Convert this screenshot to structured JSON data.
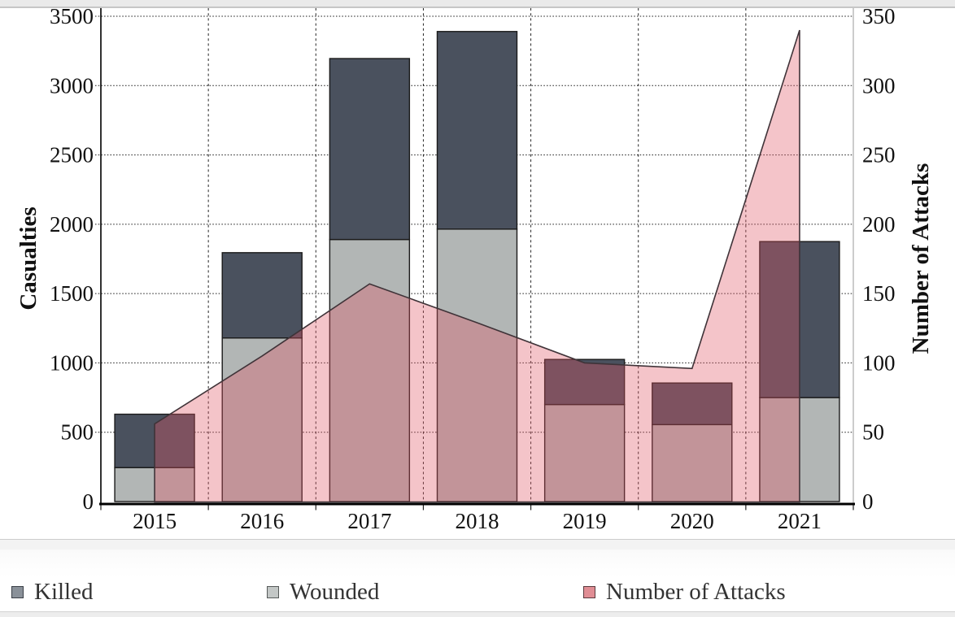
{
  "chart_data": {
    "type": "combo",
    "title": "",
    "categories": [
      "2015",
      "2016",
      "2017",
      "2018",
      "2019",
      "2020",
      "2021"
    ],
    "series": [
      {
        "name": "Killed",
        "chart": "bar",
        "stack": "casualties",
        "stack_position": "top",
        "axis": "left",
        "values": [
          385,
          615,
          1305,
          1425,
          325,
          300,
          1125
        ],
        "color": "#4a515e",
        "border_color": "#1a1a1a"
      },
      {
        "name": "Wounded",
        "chart": "bar",
        "stack": "casualties",
        "stack_position": "bottom",
        "axis": "left",
        "values": [
          245,
          1180,
          1890,
          1965,
          700,
          555,
          750
        ],
        "color": "#b2b6b5",
        "border_color": "#1a1a1a"
      },
      {
        "name": "Number of Attacks",
        "chart": "area",
        "axis": "right",
        "values": [
          56,
          105,
          157,
          129,
          100,
          96,
          340
        ],
        "color": "#df5564",
        "fill_opacity": 0.35,
        "line_color": "#3f3338"
      }
    ],
    "stacked_totals": [
      630,
      1795,
      3195,
      3390,
      1025,
      855,
      1875
    ],
    "left_axis": {
      "title": "Casualties",
      "min": 0,
      "max": 3500,
      "ticks": [
        0,
        500,
        1000,
        1500,
        2000,
        2500,
        3000,
        3500
      ]
    },
    "right_axis": {
      "title": "Number of Attacks",
      "min": 0,
      "max": 350,
      "ticks": [
        0,
        50,
        100,
        150,
        200,
        250,
        300,
        350
      ]
    },
    "grid": {
      "horizontal": "dotted",
      "vertical": "dashed",
      "enabled": true
    },
    "legend_position": "bottom"
  },
  "legend": {
    "items": [
      {
        "label": "Killed",
        "swatch_fill": "#8a9199",
        "swatch_border": "#3a3f47"
      },
      {
        "label": "Wounded",
        "swatch_fill": "#c3c7c6",
        "swatch_border": "#565a59"
      },
      {
        "label": "Number of Attacks",
        "swatch_fill": "#e08d94",
        "swatch_border": "#5a3a3e"
      }
    ]
  }
}
